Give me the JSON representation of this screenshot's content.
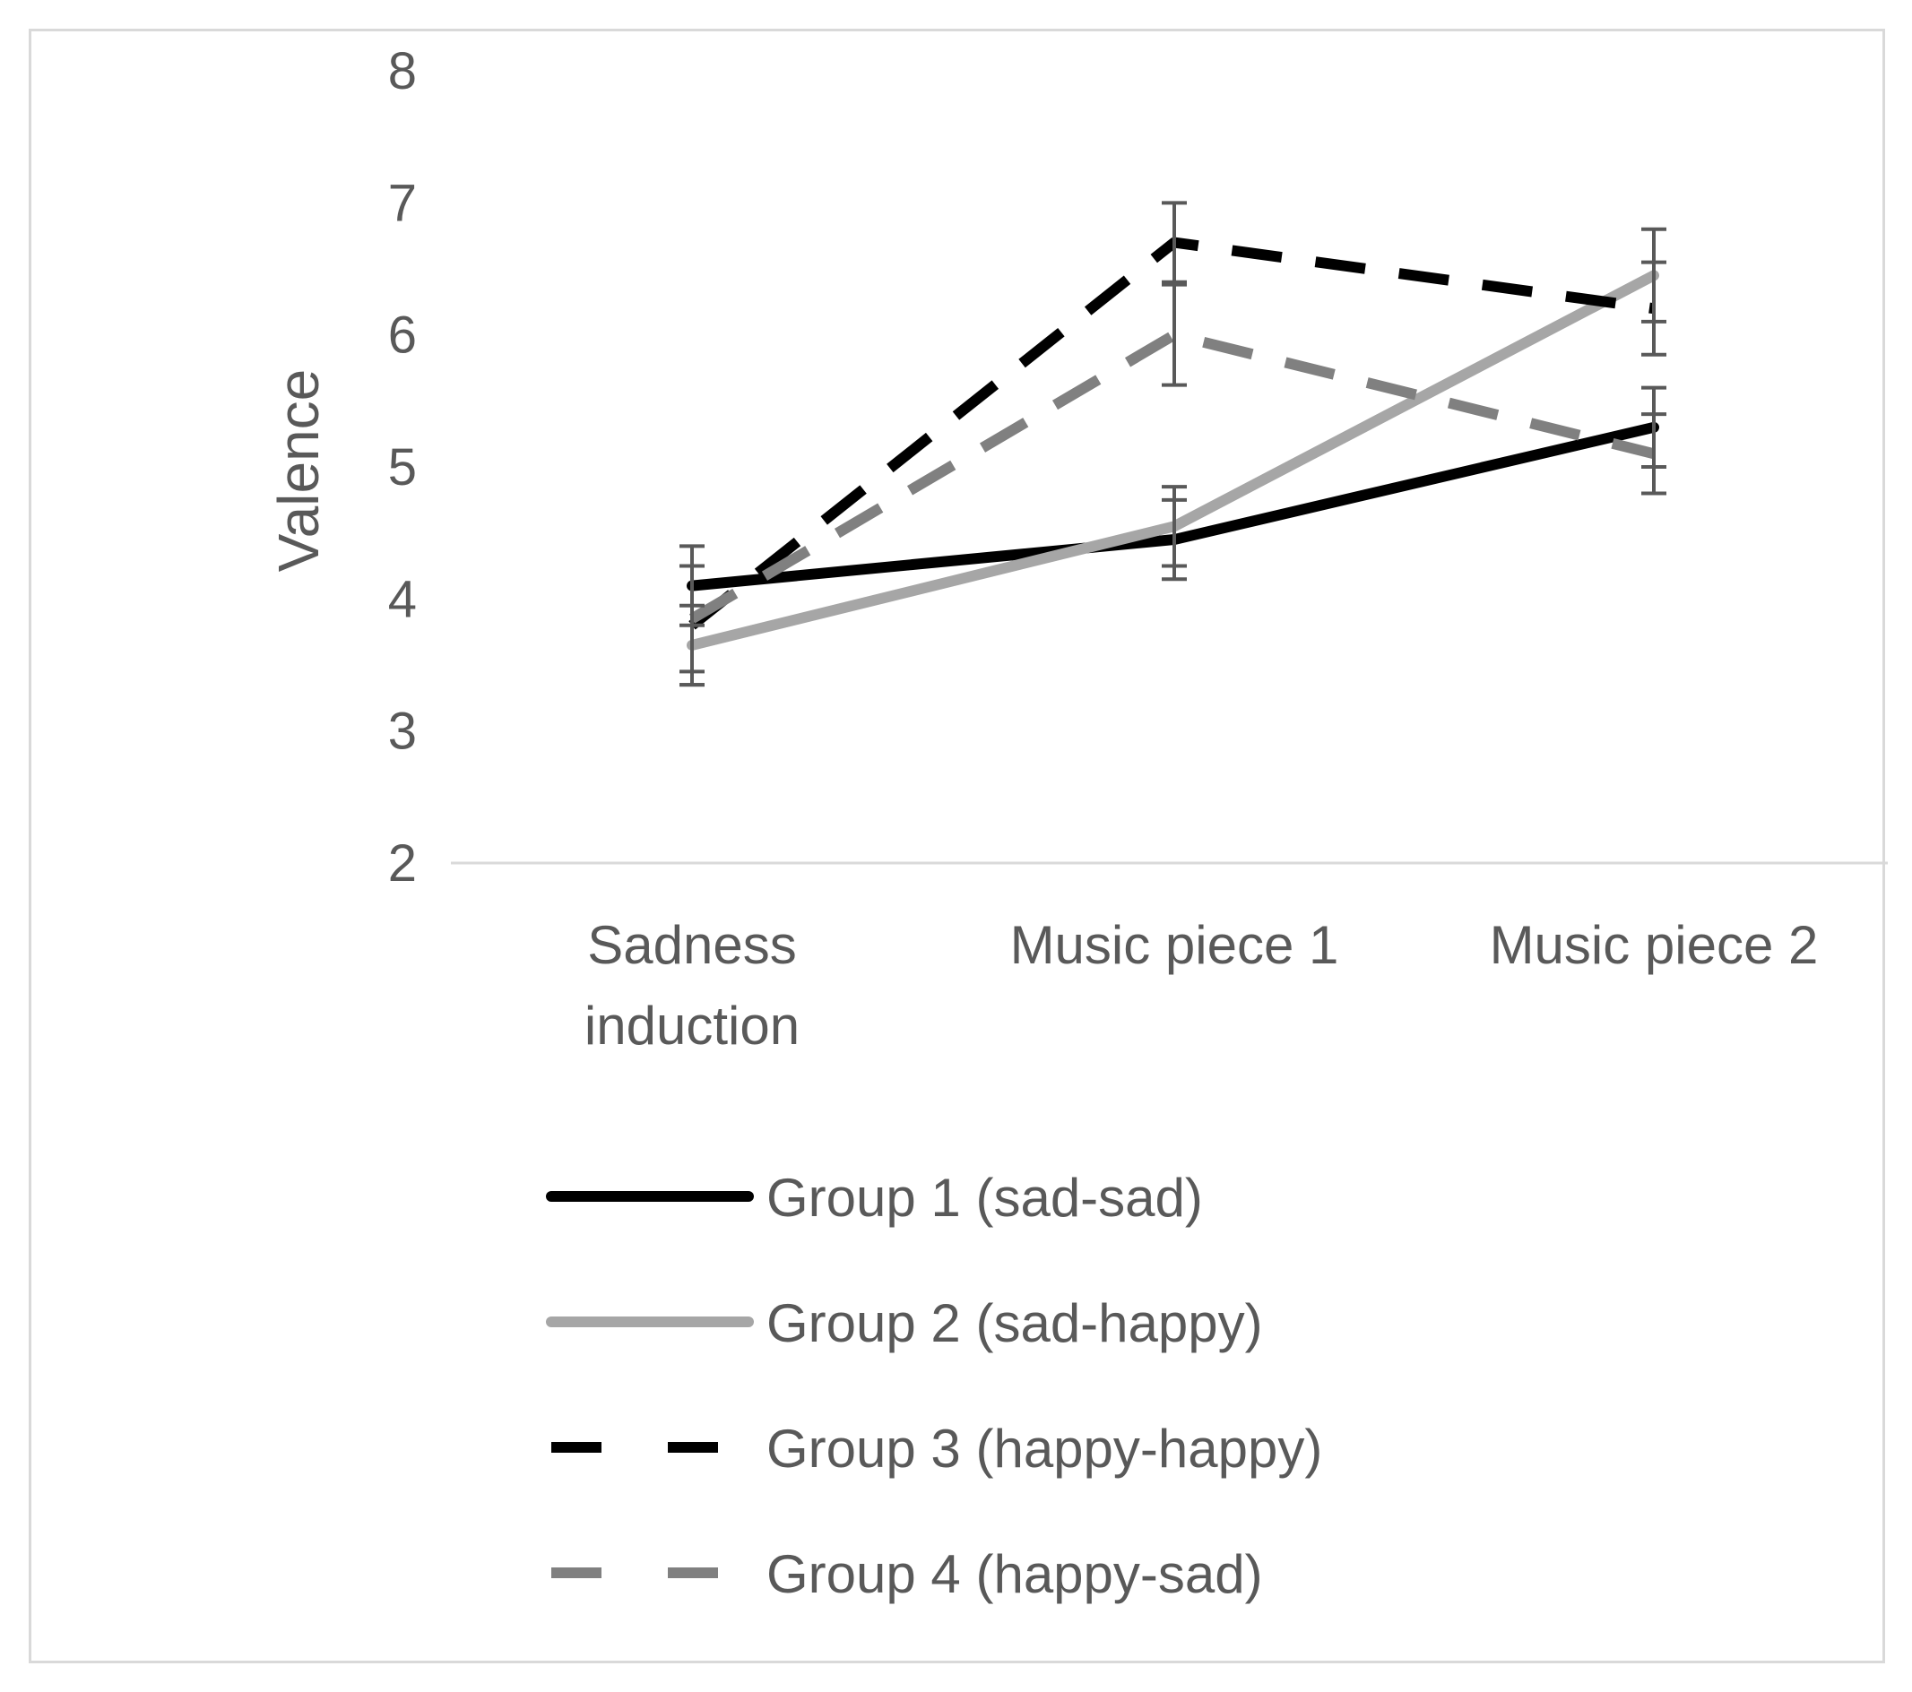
{
  "chart_data": {
    "type": "line",
    "title": "",
    "xlabel": "",
    "ylabel": "Valence",
    "ylim": [
      2,
      8
    ],
    "yticks": [
      2,
      3,
      4,
      5,
      6,
      7,
      8
    ],
    "grid": false,
    "legend_position": "bottom",
    "categories": [
      [
        "Sadness",
        "induction"
      ],
      [
        "Music piece 1"
      ],
      [
        "Music piece 2"
      ]
    ],
    "series": [
      {
        "name": "Group 1 (sad-sad)",
        "values": [
          4.1,
          4.45,
          5.3
        ],
        "error": [
          0.3,
          0.3,
          0.3
        ],
        "color": "#000000",
        "dashed": false
      },
      {
        "name": "Group 2 (sad-happy)",
        "values": [
          3.65,
          4.55,
          6.45
        ],
        "error": [
          0.3,
          0.3,
          0.35
        ],
        "color": "#a6a6a6",
        "dashed": false
      },
      {
        "name": "Group 3 (happy-happy)",
        "values": [
          3.8,
          6.7,
          6.2
        ],
        "error": [
          0.45,
          0.3,
          0.35
        ],
        "color": "#000000",
        "dashed": true
      },
      {
        "name": "Group 4 (happy-sad)",
        "values": [
          3.85,
          6.0,
          5.1
        ],
        "error": [
          0.4,
          0.38,
          0.3
        ],
        "color": "#808080",
        "dashed": true
      }
    ]
  }
}
